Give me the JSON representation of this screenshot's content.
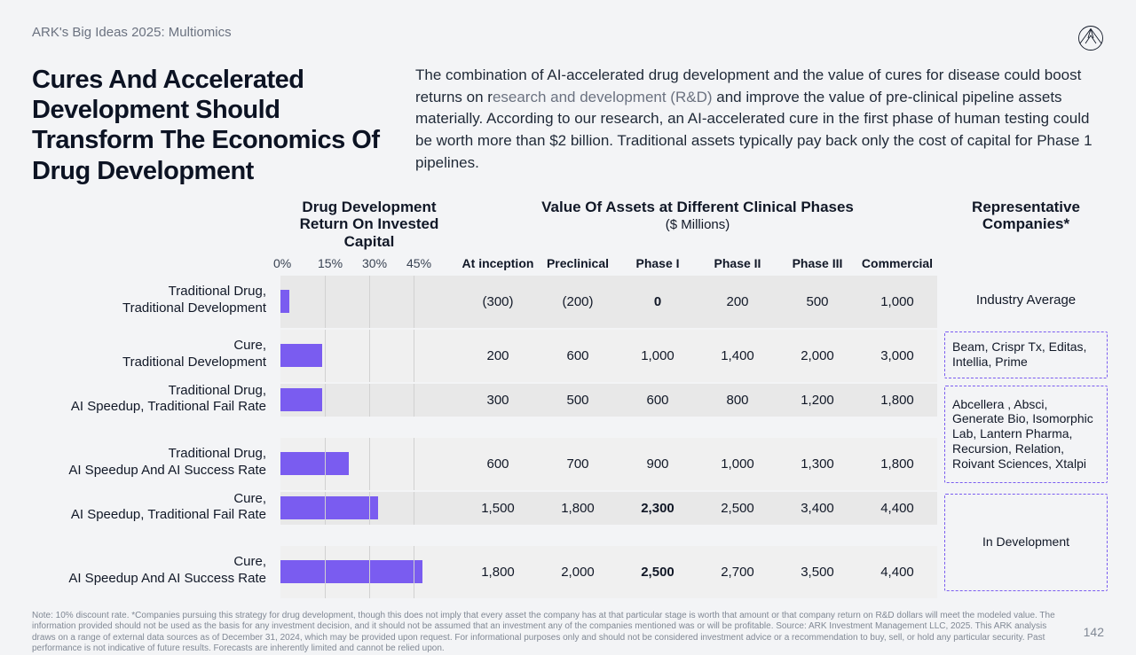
{
  "breadcrumb": "ARK's Big Ideas 2025: Multiomics",
  "title": "Cures And Accelerated Development Should Transform The Economics Of Drug Development",
  "body_pre": "The combination of AI-accelerated drug development and the value of cures for disease could boost returns on r",
  "body_rd": "esearch and development (R&D)",
  "body_post": " and improve the value of pre-clinical pipeline assets materially. According to our research, an AI-accelerated cure in the first phase of human testing could be worth more than $2 billion. Traditional assets typically pay back only the cost of capital for Phase 1 pipelines.",
  "headers": {
    "roic": "Drug Development\nReturn On Invested Capital",
    "values_title": "Value Of Assets at Different Clinical Phases",
    "values_sub": "($ Millions)",
    "rep": "Representative\nCompanies*"
  },
  "roic_axis": {
    "max_pct": 60,
    "ticks": [
      "0%",
      "15%",
      "30%",
      "45%"
    ],
    "tick_values": [
      0,
      15,
      30,
      45
    ]
  },
  "phase_cols": [
    "At inception",
    "Preclinical",
    "Phase I",
    "Phase II",
    "Phase III",
    "Commercial"
  ],
  "bar_color": "#7a5cf0",
  "row_bg": "#e8e8e8",
  "row_bg_alt": "#f0f0f0",
  "grid_line_color": "#d1d1d1",
  "rows": [
    {
      "label": "Traditional Drug,\nTraditional Development",
      "roic": 3,
      "values": [
        "(300)",
        "(200)",
        "0",
        "200",
        "500",
        "1,000"
      ],
      "bold_idx": 2,
      "rep_text": "Industry Average",
      "rep_box": false
    },
    {
      "label": "Cure,\nTraditional Development",
      "roic": 14,
      "values": [
        "200",
        "600",
        "1,000",
        "1,400",
        "2,000",
        "3,000"
      ],
      "bold_idx": -1,
      "rep_text": "Beam, Crispr Tx, Editas, Intellia, Prime",
      "rep_box": true
    },
    {
      "label": "Traditional Drug,\nAI Speedup, Traditional Fail Rate",
      "roic": 14,
      "values": [
        "300",
        "500",
        "600",
        "800",
        "1,200",
        "1,800"
      ],
      "bold_idx": -1,
      "rep_text": "Abcellera , Absci, Generate Bio, Isomorphic Lab, Lantern Pharma, Recursion, Relation, Roivant Sciences, Xtalpi",
      "rep_box": true,
      "rep_span": 2
    },
    {
      "label": "Traditional Drug,\nAI Speedup And AI Success Rate",
      "roic": 23,
      "values": [
        "600",
        "700",
        "900",
        "1,000",
        "1,300",
        "1,800"
      ],
      "bold_idx": -1
    },
    {
      "label": "Cure,\nAI Speedup, Traditional Fail Rate",
      "roic": 33,
      "values": [
        "1,500",
        "1,800",
        "2,300",
        "2,500",
        "3,400",
        "4,400"
      ],
      "bold_idx": 2,
      "rep_text": "In Development",
      "rep_box": true,
      "rep_span": 2
    },
    {
      "label": "Cure,\nAI Speedup And AI Success Rate",
      "roic": 48,
      "values": [
        "1,800",
        "2,000",
        "2,500",
        "2,700",
        "3,500",
        "4,400"
      ],
      "bold_idx": 2
    }
  ],
  "footnote": "Note: 10% discount rate. *Companies pursuing this strategy for drug development, though this does not imply that every asset the company has at that particular stage is worth that amount or that company return on R&D dollars will meet the modeled value. The information provided should not be used as the basis for any investment decision, and it should not be assumed that an investment any of the companies mentioned was or will be profitable. Source: ARK Investment Management LLC, 2025. This ARK analysis draws on a range of external data sources as of December 31, 2024, which may be provided upon request. For informational purposes only and should not be considered investment advice or a recommendation to buy, sell, or hold any particular security. Past performance is not indicative of future results. Forecasts are inherently limited and cannot be relied upon.",
  "page_number": "142"
}
